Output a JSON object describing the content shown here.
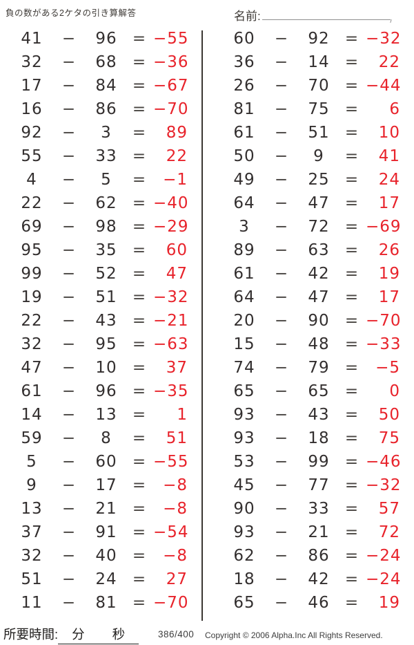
{
  "header": {
    "title": "負の数がある2ケタの引き算解答",
    "name_label": "名前:"
  },
  "worksheet": {
    "operators": {
      "minus": "−",
      "equals": "="
    },
    "columns": [
      {
        "problems": [
          [
            "41",
            "96",
            "−55"
          ],
          [
            "32",
            "68",
            "−36"
          ],
          [
            "17",
            "84",
            "−67"
          ],
          [
            "16",
            "86",
            "−70"
          ],
          [
            "92",
            "3",
            "89"
          ],
          [
            "55",
            "33",
            "22"
          ],
          [
            "4",
            "5",
            "−1"
          ],
          [
            "22",
            "62",
            "−40"
          ],
          [
            "69",
            "98",
            "−29"
          ],
          [
            "95",
            "35",
            "60"
          ],
          [
            "99",
            "52",
            "47"
          ],
          [
            "19",
            "51",
            "−32"
          ],
          [
            "22",
            "43",
            "−21"
          ],
          [
            "32",
            "95",
            "−63"
          ],
          [
            "47",
            "10",
            "37"
          ],
          [
            "61",
            "96",
            "−35"
          ],
          [
            "14",
            "13",
            "1"
          ],
          [
            "59",
            "8",
            "51"
          ],
          [
            "5",
            "60",
            "−55"
          ],
          [
            "9",
            "17",
            "−8"
          ],
          [
            "13",
            "21",
            "−8"
          ],
          [
            "37",
            "91",
            "−54"
          ],
          [
            "32",
            "40",
            "−8"
          ],
          [
            "51",
            "24",
            "27"
          ],
          [
            "11",
            "81",
            "−70"
          ]
        ]
      },
      {
        "problems": [
          [
            "60",
            "92",
            "−32"
          ],
          [
            "36",
            "14",
            "22"
          ],
          [
            "26",
            "70",
            "−44"
          ],
          [
            "81",
            "75",
            "6"
          ],
          [
            "61",
            "51",
            "10"
          ],
          [
            "50",
            "9",
            "41"
          ],
          [
            "49",
            "25",
            "24"
          ],
          [
            "64",
            "47",
            "17"
          ],
          [
            "3",
            "72",
            "−69"
          ],
          [
            "89",
            "63",
            "26"
          ],
          [
            "61",
            "42",
            "19"
          ],
          [
            "64",
            "47",
            "17"
          ],
          [
            "20",
            "90",
            "−70"
          ],
          [
            "15",
            "48",
            "−33"
          ],
          [
            "74",
            "79",
            "−5"
          ],
          [
            "65",
            "65",
            "0"
          ],
          [
            "93",
            "43",
            "50"
          ],
          [
            "93",
            "18",
            "75"
          ],
          [
            "53",
            "99",
            "−46"
          ],
          [
            "45",
            "77",
            "−32"
          ],
          [
            "90",
            "33",
            "57"
          ],
          [
            "93",
            "21",
            "72"
          ],
          [
            "62",
            "86",
            "−24"
          ],
          [
            "18",
            "42",
            "−24"
          ],
          [
            "65",
            "46",
            "19"
          ]
        ]
      }
    ]
  },
  "footer": {
    "time_label": "所要時間:",
    "minutes_label": "分",
    "seconds_label": "秒",
    "page": "386/400",
    "copyright": "Copyright © 2006 Alpha.Inc All Rights Reserved."
  },
  "colors": {
    "answer_red": "#e8232b",
    "text": "#332f2f",
    "divider": "#3a3632"
  }
}
